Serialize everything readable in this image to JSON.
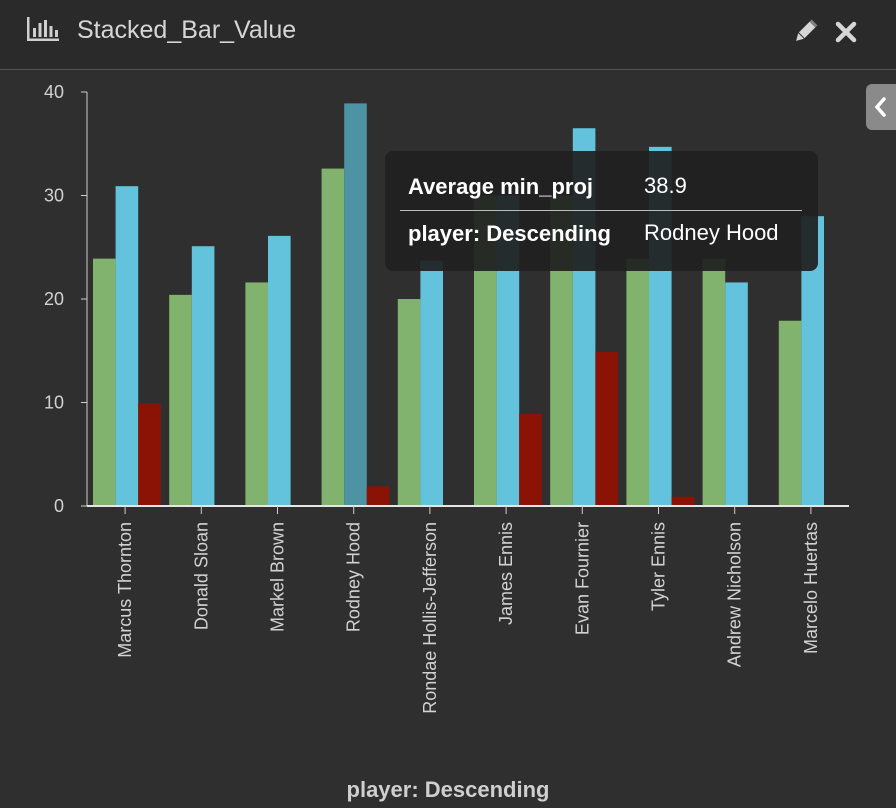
{
  "window": {
    "title": "Stacked_Bar_Value",
    "icons": [
      "bar-chart-icon",
      "pencil-icon",
      "close-icon",
      "chevron-left-icon"
    ]
  },
  "tooltip": {
    "row1_label": "Average min_proj",
    "row1_value": "38.9",
    "row2_label": "player: Descending",
    "row2_value": "Rodney Hood"
  },
  "chart_data": {
    "type": "bar",
    "title": "",
    "xlabel": "player: Descending",
    "ylabel": "",
    "ylim": [
      0,
      40
    ],
    "yticks": [
      0,
      10,
      20,
      30,
      40
    ],
    "grid": false,
    "legend": "none",
    "categories": [
      "Marcus Thornton",
      "Donald Sloan",
      "Markel Brown",
      "Rodney Hood",
      "Rondae Hollis-Jefferson",
      "James Ennis",
      "Evan Fournier",
      "Tyler Ennis",
      "Andrew Nicholson",
      "Marcelo Huertas"
    ],
    "series": [
      {
        "color": "#82b36e",
        "values": [
          23.9,
          20.4,
          21.6,
          32.6,
          20.0,
          30,
          30,
          23.9,
          23.9,
          17.9
        ]
      },
      {
        "color": "#63c3dd",
        "values": [
          30.9,
          25.1,
          26.1,
          38.9,
          23.7,
          30,
          36.5,
          34.7,
          21.6,
          28
        ]
      },
      {
        "color": "#8b1306",
        "values": [
          9.9,
          0,
          0,
          1.9,
          0,
          8.9,
          14.9,
          0.9,
          0,
          0
        ]
      }
    ],
    "highlight": {
      "category_index": 3,
      "series_index": 1,
      "color": "#4d93a4"
    }
  }
}
